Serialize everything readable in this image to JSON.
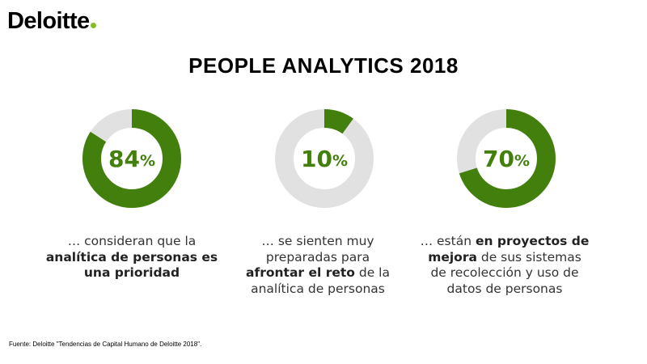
{
  "brand": {
    "logo_text": "Deloitte",
    "logo_dot_color": "#86bc25"
  },
  "title": "PEOPLE ANALYTICS 2018",
  "colors": {
    "fill": "#437f0c",
    "track": "#e1e1e1",
    "label": "#437f0c"
  },
  "chart_data": [
    {
      "type": "pie",
      "style": "donut",
      "values": [
        84,
        16
      ],
      "value_label": "84",
      "unit": "%",
      "caption": {
        "prefix": "… consideran que la ",
        "bold": "analítica de personas es una prioridad",
        "suffix": ""
      }
    },
    {
      "type": "pie",
      "style": "donut",
      "values": [
        10,
        90
      ],
      "value_label": "10",
      "unit": "%",
      "caption": {
        "prefix": "… se sienten muy preparadas para ",
        "bold": "afrontar el reto",
        "suffix": " de la analítica de personas"
      }
    },
    {
      "type": "pie",
      "style": "donut",
      "values": [
        70,
        30
      ],
      "value_label": "70",
      "unit": "%",
      "caption": {
        "prefix": "… están ",
        "bold": "en proyectos de mejora",
        "suffix": " de sus sistemas de recolección y uso de datos de personas"
      }
    }
  ],
  "source": "Fuente: Deloitte \"Tendencias de Capital Humano de Deloitte 2018\"."
}
